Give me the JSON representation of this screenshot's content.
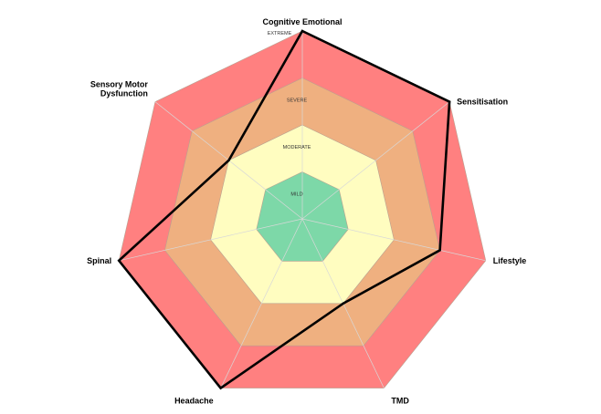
{
  "chart_data": {
    "type": "radar",
    "title": "",
    "axes": [
      "Cognitive Emotional",
      "Sensitisation",
      "Lifestyle",
      "TMD",
      "Headache",
      "Spinal",
      "Sensory Motor Dysfunction"
    ],
    "axis_label_lines": [
      [
        "Cognitive Emotional"
      ],
      [
        "Sensitisation"
      ],
      [
        "Lifestyle"
      ],
      [
        "TMD"
      ],
      [
        "Headache"
      ],
      [
        "Spinal"
      ],
      [
        "Sensory Motor",
        "Dysfunction"
      ]
    ],
    "levels": [
      {
        "label": "MILD",
        "value": 1,
        "color": "#7dd8a8"
      },
      {
        "label": "MODERATE",
        "value": 2,
        "color": "#fffdc0"
      },
      {
        "label": "SEVERE",
        "value": 3,
        "color": "#efb080"
      },
      {
        "label": "EXTREME",
        "value": 4,
        "color": "#ff8080"
      }
    ],
    "scale": [
      0,
      4
    ],
    "series": [
      {
        "values": [
          4,
          4,
          3,
          2,
          4,
          4,
          2
        ],
        "color": "#000000"
      }
    ],
    "grid": true
  }
}
